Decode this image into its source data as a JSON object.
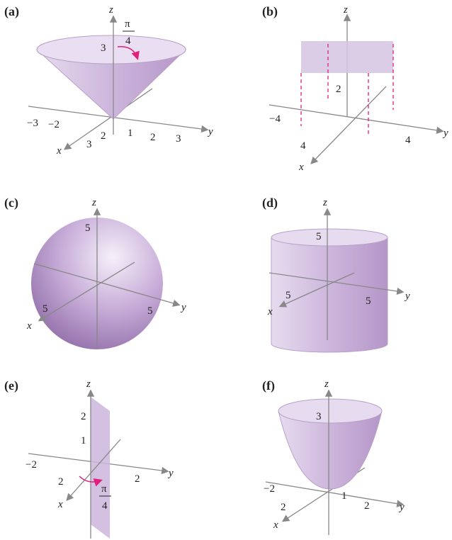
{
  "panels": [
    {
      "label": "(a)",
      "axes": {
        "x": "x",
        "y": "y",
        "z": "z"
      },
      "ticks": [
        "3",
        "−3",
        "−2",
        "2",
        "1",
        "2",
        "3",
        "3"
      ],
      "angle": {
        "numerator": "π",
        "denominator": "4"
      }
    },
    {
      "label": "(b)",
      "axes": {
        "x": "x",
        "y": "y",
        "z": "z"
      },
      "ticks": [
        "2",
        "−4",
        "4",
        "4"
      ]
    },
    {
      "label": "(c)",
      "axes": {
        "x": "x",
        "y": "y",
        "z": "z"
      },
      "ticks": [
        "5",
        "5",
        "5"
      ]
    },
    {
      "label": "(d)",
      "axes": {
        "x": "x",
        "y": "y",
        "z": "z"
      },
      "ticks": [
        "5",
        "5",
        "5"
      ]
    },
    {
      "label": "(e)",
      "axes": {
        "x": "x",
        "y": "y",
        "z": "z"
      },
      "ticks": [
        "2",
        "1",
        "−2",
        "2",
        "2"
      ],
      "angle": {
        "numerator": "π",
        "denominator": "4"
      }
    },
    {
      "label": "(f)",
      "axes": {
        "x": "x",
        "y": "y",
        "z": "z"
      },
      "ticks": [
        "3",
        "−2",
        "1",
        "2",
        "2"
      ]
    }
  ]
}
